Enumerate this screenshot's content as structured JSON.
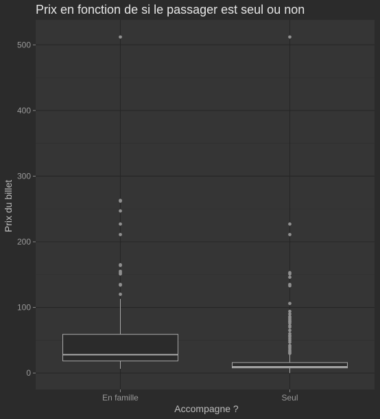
{
  "chart_data": {
    "type": "box",
    "title": "Prix en fonction de si le passager est seul ou non",
    "xlabel": "Accompagne ?",
    "ylabel": "Prix du billet",
    "ylim": [
      -25,
      538
    ],
    "yticks": [
      0,
      100,
      200,
      300,
      400,
      500
    ],
    "categories": [
      "En famille",
      "Seul"
    ],
    "grid": true,
    "legend": "none",
    "colors": {
      "background": "#2b2b2b",
      "panel": "#353535",
      "grid_major": "#262626",
      "grid_minor": "#2e2e2e",
      "box_outline": "#a8a8a8",
      "box_fill": "#2b2b2b",
      "outlier": "#8f8f8f"
    },
    "boxes": [
      {
        "category": "En famille",
        "min": 6.5,
        "q1": 18.5,
        "median": 28,
        "q3": 59,
        "max": 113,
        "outliers": [
          120,
          134,
          135,
          151,
          153,
          155,
          164,
          165,
          211,
          227,
          247,
          262,
          263,
          512
        ]
      },
      {
        "category": "Seul",
        "min": 0,
        "q1": 7.8,
        "median": 9.5,
        "q3": 16,
        "max": 28,
        "outliers": [
          30,
          31,
          33,
          35,
          38,
          40,
          42,
          47,
          50,
          53,
          56,
          57,
          60,
          65,
          70,
          72,
          76,
          78,
          79,
          81,
          83,
          85,
          86,
          90,
          94,
          106,
          133,
          135,
          146,
          151,
          153,
          211,
          227,
          512
        ]
      }
    ]
  }
}
